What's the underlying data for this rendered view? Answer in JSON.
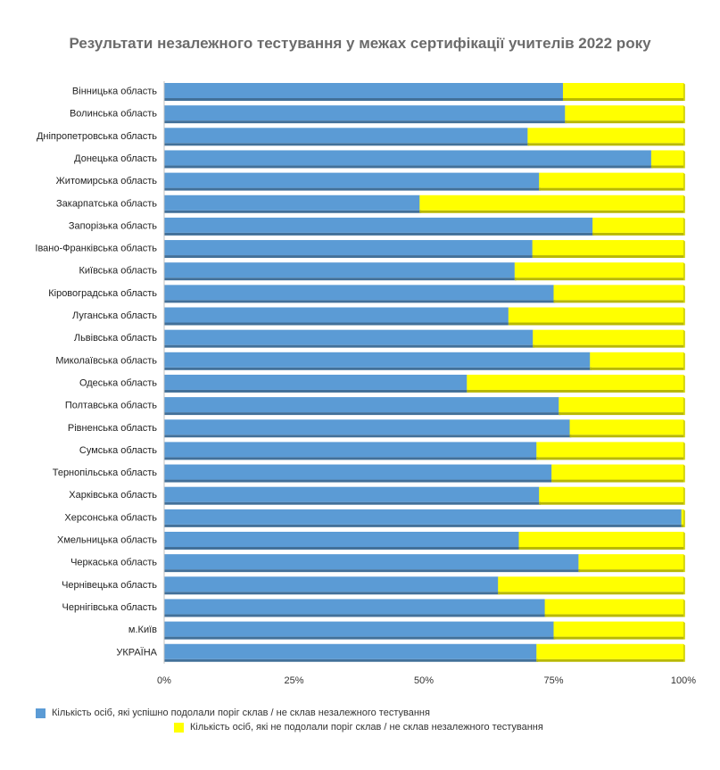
{
  "chart_data": {
    "type": "bar",
    "orientation": "horizontal",
    "stacked": "percent",
    "title": "Результати незалежного тестування у межах сертифікації учителів 2022 року",
    "categories": [
      "Вінницька область",
      "Волинська область",
      "Дніпропетровська область",
      "Донецька область",
      "Житомирська область",
      "Закарпатська область",
      "Запорізька область",
      "Івано-Франківська область",
      "Київська область",
      "Кіровоградська область",
      "Луганська область",
      "Львівська область",
      "Миколаївська область",
      "Одеська область",
      "Полтавська область",
      "Рівненська область",
      "Сумська область",
      "Тернопільська область",
      "Харківська область",
      "Херсонська область",
      "Хмельницька область",
      "Черкаська область",
      "Чернівецька область",
      "Чернігівська область",
      "м.Київ",
      "УКРАЇНА"
    ],
    "series": [
      {
        "name": "Кількість осіб, які успішно подолали поріг склав / не склав незалежного тестування",
        "color": "#5b9bd5",
        "values": [
          76.8,
          77.2,
          70.0,
          93.8,
          72.2,
          49.2,
          82.5,
          70.9,
          67.5,
          75.0,
          66.3,
          71.0,
          82.0,
          58.3,
          76.0,
          78.1,
          71.7,
          74.6,
          72.2,
          99.6,
          68.3,
          79.8,
          64.3,
          73.3,
          75.0,
          71.7
        ]
      },
      {
        "name": "Кількість осіб, які не подолали поріг склав / не склав незалежного тестування",
        "color": "#ffff00",
        "values": [
          23.2,
          22.8,
          30.0,
          6.2,
          27.8,
          50.8,
          17.5,
          29.1,
          32.5,
          25.0,
          33.7,
          29.0,
          18.0,
          41.7,
          24.0,
          21.9,
          28.3,
          25.4,
          27.8,
          0.4,
          31.7,
          20.2,
          35.7,
          26.7,
          25.0,
          28.3
        ]
      }
    ],
    "xlim": [
      0,
      100
    ],
    "x_ticks": [
      "0%",
      "25%",
      "50%",
      "75%",
      "100%"
    ],
    "grid": false,
    "legend_position": "bottom"
  }
}
